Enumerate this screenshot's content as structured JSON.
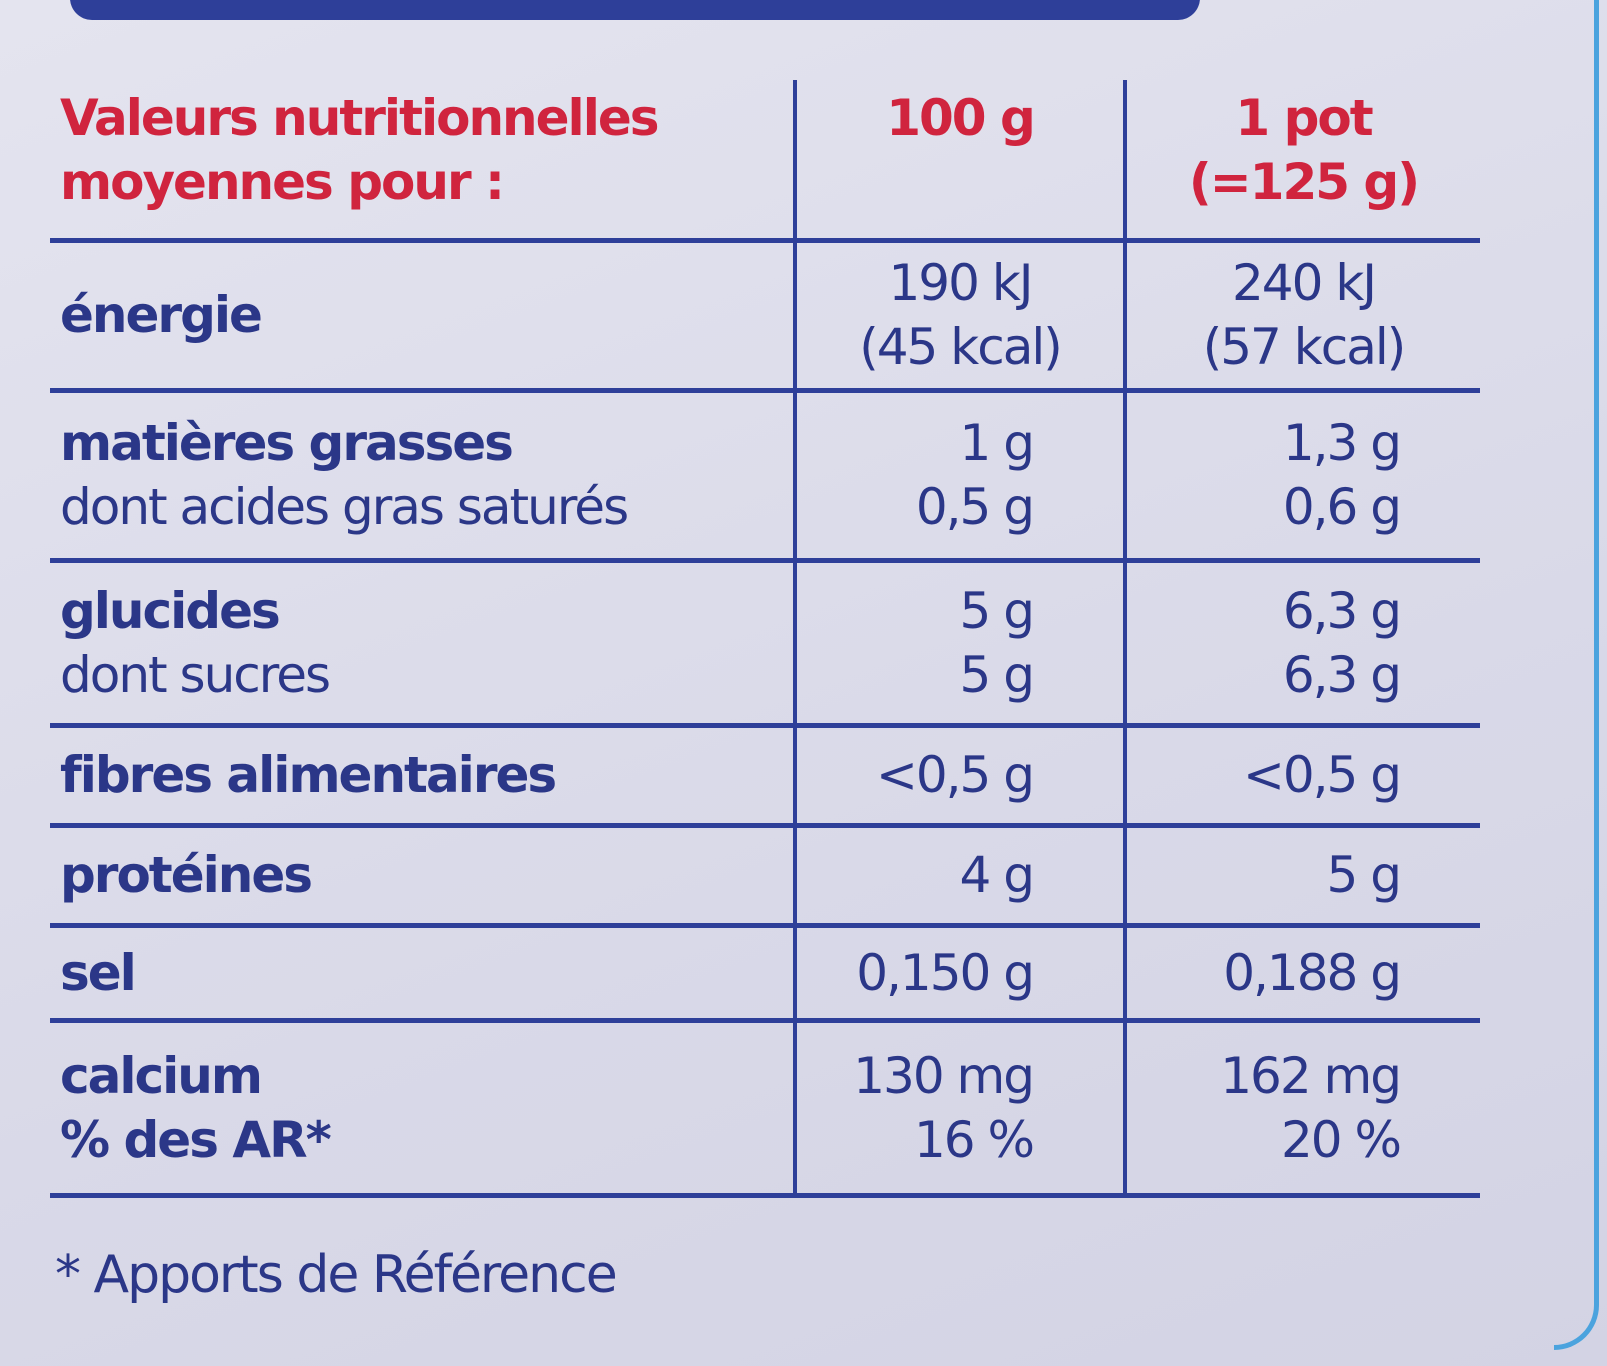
{
  "table": {
    "header": [
      [
        "Valeurs nutritionnelles",
        "moyennes pour :"
      ],
      [
        "100 g"
      ],
      [
        "1 pot",
        "(=125 g)"
      ]
    ],
    "rows": [
      [
        [
          "énergie"
        ],
        [
          "190 kJ",
          "(45 kcal)"
        ],
        [
          "240 kJ",
          "(57 kcal)"
        ]
      ],
      [
        [
          "matières grasses",
          "dont acides gras saturés"
        ],
        [
          "1 g",
          "0,5 g"
        ],
        [
          "1,3 g",
          "0,6 g"
        ]
      ],
      [
        [
          "glucides",
          "dont sucres"
        ],
        [
          "5 g",
          "5 g"
        ],
        [
          "6,3 g",
          "6,3 g"
        ]
      ],
      [
        [
          "fibres alimentaires"
        ],
        [
          "<0,5 g"
        ],
        [
          "<0,5 g"
        ]
      ],
      [
        [
          "protéines"
        ],
        [
          "4 g"
        ],
        [
          "5 g"
        ]
      ],
      [
        [
          "sel"
        ],
        [
          "0,150 g"
        ],
        [
          "0,188 g"
        ]
      ],
      [
        [
          "calcium",
          "% des AR*"
        ],
        [
          "130 mg",
          "16 %"
        ],
        [
          "162 mg",
          "20 %"
        ]
      ]
    ]
  },
  "footnote": "* Apports de Référence"
}
